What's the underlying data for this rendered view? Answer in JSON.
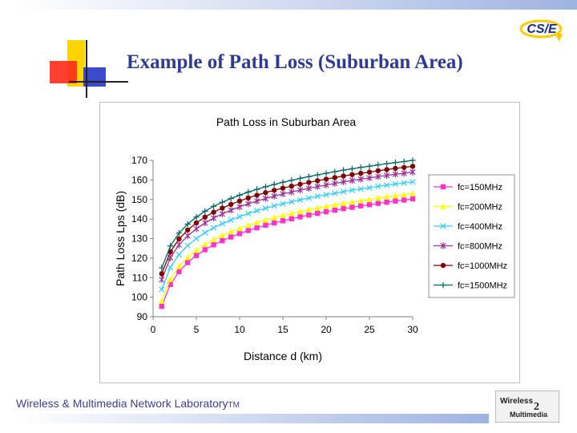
{
  "slide": {
    "title": "Example of Path Loss (Suburban Area)",
    "footer": "Wireless & Multimedia Network Laboratory",
    "footer_tm": "TM",
    "logo_text": "CS/E",
    "lab_logo_line1": "Wireless",
    "lab_logo_line2": "Multimedia",
    "accent_color": "#2f3b93"
  },
  "chart_data": {
    "type": "line",
    "title": "Path Loss in Suburban Area",
    "xlabel": "Distance d (km)",
    "ylabel": "Path Loss Lps (dB)",
    "xlim": [
      0,
      30
    ],
    "ylim": [
      90,
      170
    ],
    "x_ticks": [
      "0",
      "5",
      "10",
      "15",
      "20",
      "25",
      "30"
    ],
    "y_ticks": [
      "90",
      "100",
      "110",
      "120",
      "130",
      "140",
      "150",
      "160",
      "170"
    ],
    "legend_position": "right",
    "grid": false,
    "x": [
      1,
      2,
      3,
      4,
      5,
      6,
      7,
      8,
      9,
      10,
      11,
      12,
      13,
      14,
      15,
      16,
      17,
      18,
      19,
      20,
      21,
      22,
      23,
      24,
      25,
      26,
      27,
      28,
      29,
      30
    ],
    "series": [
      {
        "name": "fc=150MHz",
        "color": "#ff33cc",
        "marker": "square",
        "values": [
          95.3,
          106.5,
          113.1,
          117.7,
          121.3,
          124.3,
          126.8,
          128.9,
          130.8,
          132.5,
          134.1,
          135.5,
          136.8,
          138.0,
          139.1,
          140.1,
          141.1,
          142.0,
          142.9,
          143.7,
          144.5,
          145.3,
          146.0,
          146.7,
          147.3,
          148.0,
          148.6,
          149.2,
          149.7,
          150.3
        ]
      },
      {
        "name": "fc=200MHz",
        "color": "#ffff00",
        "marker": "triangle",
        "values": [
          98.0,
          109.2,
          115.8,
          120.4,
          124.0,
          127.0,
          129.5,
          131.6,
          133.5,
          135.2,
          136.8,
          138.2,
          139.5,
          140.7,
          141.8,
          142.8,
          143.8,
          144.7,
          145.6,
          146.4,
          147.2,
          148.0,
          148.7,
          149.4,
          150.0,
          150.7,
          151.3,
          151.9,
          152.4,
          153.0
        ]
      },
      {
        "name": "fc=400MHz",
        "color": "#33ccff",
        "marker": "x",
        "values": [
          104.0,
          115.2,
          121.8,
          126.4,
          130.0,
          133.0,
          135.5,
          137.6,
          139.5,
          141.2,
          142.8,
          144.2,
          145.5,
          146.7,
          147.8,
          148.8,
          149.8,
          150.7,
          151.6,
          152.4,
          153.2,
          154.0,
          154.7,
          155.4,
          156.0,
          156.7,
          157.3,
          157.9,
          158.4,
          159.0
        ]
      },
      {
        "name": "fc=800MHz",
        "color": "#993399",
        "marker": "star",
        "values": [
          109.0,
          120.2,
          126.8,
          131.4,
          135.0,
          138.0,
          140.5,
          142.6,
          144.5,
          146.2,
          147.8,
          149.2,
          150.5,
          151.7,
          152.8,
          153.8,
          154.8,
          155.7,
          156.6,
          157.4,
          158.2,
          159.0,
          159.7,
          160.4,
          161.0,
          161.7,
          162.3,
          162.9,
          163.4,
          164.0
        ]
      },
      {
        "name": "fc=1000MHz",
        "color": "#800000",
        "marker": "circle",
        "values": [
          112.0,
          123.2,
          129.8,
          134.4,
          138.0,
          141.0,
          143.5,
          145.6,
          147.5,
          149.2,
          150.8,
          152.2,
          153.5,
          154.7,
          155.8,
          156.8,
          157.8,
          158.7,
          159.6,
          160.4,
          161.2,
          162.0,
          162.7,
          163.4,
          164.0,
          164.7,
          165.3,
          165.9,
          166.4,
          167.0
        ]
      },
      {
        "name": "fc=1500MHz",
        "color": "#006666",
        "marker": "plus",
        "values": [
          115.0,
          126.2,
          132.8,
          137.4,
          141.0,
          144.0,
          146.5,
          148.6,
          150.5,
          152.2,
          153.8,
          155.2,
          156.5,
          157.7,
          158.8,
          159.8,
          160.8,
          161.7,
          162.6,
          163.4,
          164.2,
          165.0,
          165.7,
          166.4,
          167.0,
          167.7,
          168.3,
          168.9,
          169.4,
          170.0
        ]
      }
    ]
  }
}
